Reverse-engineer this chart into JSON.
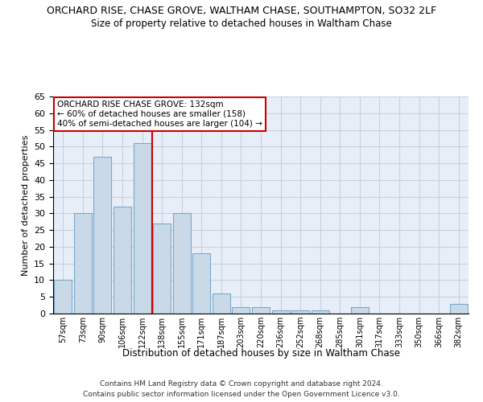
{
  "title": "ORCHARD RISE, CHASE GROVE, WALTHAM CHASE, SOUTHAMPTON, SO32 2LF",
  "subtitle": "Size of property relative to detached houses in Waltham Chase",
  "xlabel": "Distribution of detached houses by size in Waltham Chase",
  "ylabel": "Number of detached properties",
  "bar_labels": [
    "57sqm",
    "73sqm",
    "90sqm",
    "106sqm",
    "122sqm",
    "138sqm",
    "155sqm",
    "171sqm",
    "187sqm",
    "203sqm",
    "220sqm",
    "236sqm",
    "252sqm",
    "268sqm",
    "285sqm",
    "301sqm",
    "317sqm",
    "333sqm",
    "350sqm",
    "366sqm",
    "382sqm"
  ],
  "bar_values": [
    10,
    30,
    47,
    32,
    51,
    27,
    30,
    18,
    6,
    2,
    2,
    1,
    1,
    1,
    0,
    2,
    0,
    0,
    0,
    0,
    3
  ],
  "bar_color": "#c9d9e8",
  "bar_edgecolor": "#7aa8cc",
  "vline_x": 4.5,
  "vline_color": "#cc0000",
  "annotation_title": "ORCHARD RISE CHASE GROVE: 132sqm",
  "annotation_line1": "← 60% of detached houses are smaller (158)",
  "annotation_line2": "40% of semi-detached houses are larger (104) →",
  "annotation_box_edgecolor": "#cc0000",
  "ylim": [
    0,
    65
  ],
  "yticks": [
    0,
    5,
    10,
    15,
    20,
    25,
    30,
    35,
    40,
    45,
    50,
    55,
    60,
    65
  ],
  "footnote1": "Contains HM Land Registry data © Crown copyright and database right 2024.",
  "footnote2": "Contains public sector information licensed under the Open Government Licence v3.0.",
  "background_color": "#ffffff",
  "axes_background": "#e8eef8",
  "grid_color": "#c8d0e0"
}
